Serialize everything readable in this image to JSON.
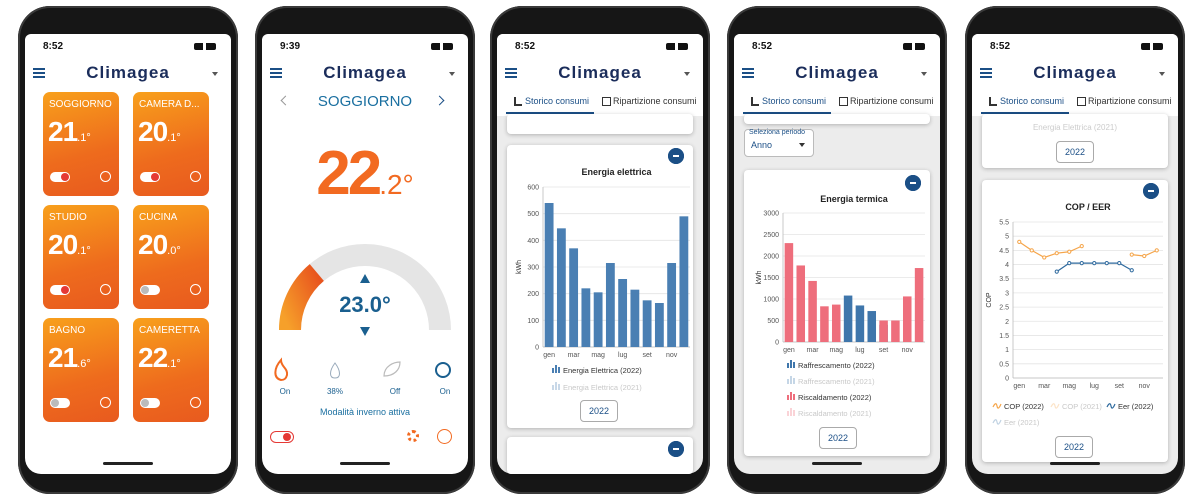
{
  "screens": [
    {
      "status_time": "8:52",
      "app_title": "Climagea",
      "rooms": [
        {
          "name": "SOGGIORNO",
          "temp": "21",
          "decimal": ".1°",
          "on": true
        },
        {
          "name": "CAMERA D...",
          "temp": "20",
          "decimal": ".1°",
          "on": true
        },
        {
          "name": "STUDIO",
          "temp": "20",
          "decimal": ".1°",
          "on": true
        },
        {
          "name": "CUCINA",
          "temp": "20",
          "decimal": ".0°",
          "on": false
        },
        {
          "name": "BAGNO",
          "temp": "21",
          "decimal": ".6°",
          "on": false
        },
        {
          "name": "CAMERETTA",
          "temp": "22",
          "decimal": ".1°",
          "on": false
        }
      ]
    },
    {
      "status_time": "9:39",
      "app_title": "Climagea",
      "room": "SOGGIORNO",
      "temp": "22",
      "decimal": ".2°",
      "setpoint": "23.0°",
      "modes": [
        "On",
        "38%",
        "Off",
        "On"
      ],
      "mode_note": "Modalità inverno attiva"
    },
    {
      "status_time": "8:52",
      "app_title": "Climagea",
      "tabs": [
        "Storico consumi",
        "Ripartizione consumi"
      ],
      "year_button": "2022"
    },
    {
      "status_time": "8:52",
      "app_title": "Climagea",
      "tabs": [
        "Storico consumi",
        "Ripartizione consumi"
      ],
      "period_label": "Seleziona periodo",
      "period_value": "Anno",
      "year_button": "2022"
    },
    {
      "status_time": "8:52",
      "app_title": "Climagea",
      "tabs": [
        "Storico consumi",
        "Ripartizione consumi"
      ],
      "previous_legend": "Energia Elettrica (2021)",
      "previous_button": "2022",
      "year_button": "2022"
    }
  ],
  "chart_data": [
    {
      "type": "bar",
      "title": "Energia elettrica",
      "y_label": "kWh",
      "categories": [
        "gen",
        null,
        "mar",
        null,
        "mag",
        null,
        "lug",
        null,
        "set",
        null,
        "nov",
        null
      ],
      "ylim": [
        0,
        600
      ],
      "yticks": [
        0,
        100,
        200,
        300,
        400,
        500,
        600
      ],
      "grid": true,
      "series": [
        {
          "name": "Energia Elettrica (2022)",
          "color": "#4a7fb3",
          "values": [
            540,
            445,
            370,
            220,
            205,
            315,
            255,
            215,
            175,
            165,
            315,
            490
          ]
        },
        {
          "name": "Energia Elettrica (2021)",
          "color": "#4a7fb3",
          "hidden": true
        }
      ]
    },
    {
      "type": "bar",
      "title": "Energia termica",
      "y_label": "kWh",
      "categories": [
        "gen",
        null,
        "mar",
        null,
        "mag",
        null,
        "lug",
        null,
        "set",
        null,
        "nov",
        null
      ],
      "ylim": [
        0,
        3000
      ],
      "yticks": [
        0,
        500,
        1000,
        1500,
        2000,
        2500,
        3000
      ],
      "grid": true,
      "series": [
        {
          "name": "Raffrescamento (2022)",
          "color": "#3f76ab",
          "values": [
            0,
            0,
            0,
            0,
            230,
            1080,
            850,
            720,
            400,
            0,
            0,
            0
          ]
        },
        {
          "name": "Raffrescamento (2021)",
          "color": "#3f76ab",
          "hidden": true
        },
        {
          "name": "Riscaldamento (2022)",
          "color": "#ee6e7c",
          "values": [
            2300,
            1780,
            1420,
            830,
            870,
            0,
            0,
            0,
            500,
            500,
            1060,
            1720
          ]
        },
        {
          "name": "Riscaldamento (2021)",
          "color": "#ee6e7c",
          "hidden": true
        }
      ]
    },
    {
      "type": "line",
      "title": "COP / EER",
      "y_label": "COP",
      "categories": [
        "gen",
        null,
        "mar",
        null,
        "mag",
        null,
        "lug",
        null,
        "set",
        null,
        "nov",
        null
      ],
      "ylim": [
        0,
        5.5
      ],
      "yticks": [
        0,
        0.5,
        1,
        1.5,
        2,
        2.5,
        3,
        3.5,
        4,
        4.5,
        5,
        5.5
      ],
      "grid": true,
      "series": [
        {
          "name": "COP (2022)",
          "color": "#f5a54a",
          "values": [
            4.8,
            4.5,
            4.25,
            4.4,
            4.45,
            4.65,
            null,
            null,
            null,
            4.35,
            4.3,
            4.5
          ]
        },
        {
          "name": "COP (2021)",
          "color": "#f5a54a",
          "hidden": true
        },
        {
          "name": "Eer (2022)",
          "color": "#2f6a9e",
          "values": [
            null,
            null,
            null,
            3.75,
            4.05,
            4.05,
            4.05,
            4.05,
            4.05,
            3.8,
            null,
            null
          ]
        },
        {
          "name": "Eer (2021)",
          "color": "#2f6a9e",
          "hidden": true
        }
      ]
    }
  ]
}
